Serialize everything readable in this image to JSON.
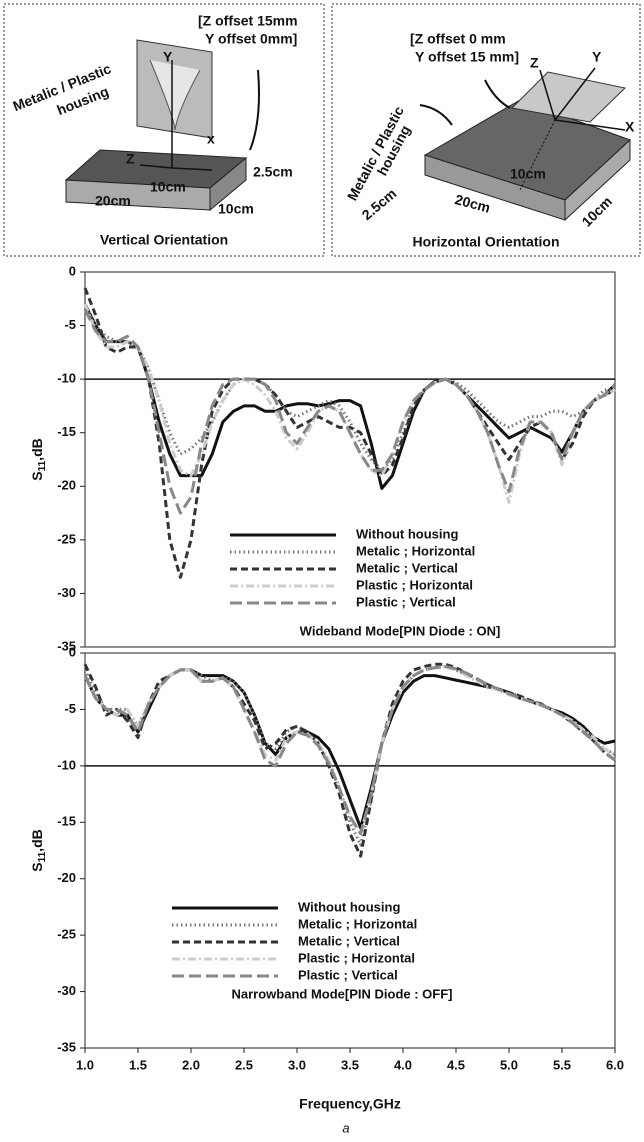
{
  "diagrams": [
    {
      "title": "Vertical Orientation",
      "offset_1": "[Z offset  15mm",
      "offset_2": "Y offset     0mm]",
      "housing_1": "Metalic / Plastic",
      "housing_2": "housing",
      "axis_y": "Y",
      "axis_x": "x",
      "axis_z": "Z",
      "height": "2.5cm",
      "width": "10cm",
      "length": "20cm",
      "depth": "10cm"
    },
    {
      "title": "Horizontal Orientation",
      "offset_1": "[Z offset  0 mm",
      "offset_2": "Y offset      15 mm]",
      "housing_1": "Metalic / Plastic",
      "housing_2": "housing",
      "axis_y": "Y",
      "axis_x": "X",
      "axis_z": "Z",
      "height": "2.5cm",
      "width": "10cm",
      "length": "20cm",
      "depth": "10cm"
    }
  ],
  "chart_data": [
    {
      "type": "line",
      "ylabel": {
        "main": "S",
        "sub": "11",
        "rest": ",dB"
      },
      "annotation": "Wideband Mode[PIN Diode : ON]",
      "hline": -10,
      "xlim": [
        1.0,
        6.0
      ],
      "ylim": [
        -35,
        0
      ],
      "yticks": [
        0,
        -5,
        -10,
        -15,
        -20,
        -25,
        -30,
        -35
      ],
      "x": [
        1.0,
        1.1,
        1.2,
        1.3,
        1.4,
        1.5,
        1.6,
        1.7,
        1.8,
        1.9,
        2.0,
        2.1,
        2.2,
        2.3,
        2.4,
        2.5,
        2.6,
        2.7,
        2.8,
        2.9,
        3.0,
        3.1,
        3.2,
        3.3,
        3.4,
        3.5,
        3.6,
        3.7,
        3.8,
        3.9,
        4.0,
        4.1,
        4.2,
        4.3,
        4.4,
        4.5,
        4.6,
        4.7,
        4.8,
        4.9,
        5.0,
        5.1,
        5.2,
        5.3,
        5.4,
        5.5,
        5.6,
        5.7,
        5.8,
        5.9,
        6.0
      ],
      "series": [
        {
          "name": "Without housing",
          "color": "#111111",
          "dash": "solid",
          "values": [
            -3,
            -5,
            -6.5,
            -6.5,
            -6.5,
            -7,
            -10,
            -14,
            -17,
            -19,
            -19,
            -19,
            -17,
            -14,
            -13,
            -12.5,
            -12.5,
            -13,
            -13,
            -12.5,
            -12.3,
            -12.3,
            -12.5,
            -12.3,
            -12,
            -12,
            -12.5,
            -16,
            -20.2,
            -19,
            -16,
            -13,
            -11,
            -10.2,
            -10,
            -10.5,
            -11.5,
            -12.5,
            -13.5,
            -14.5,
            -15.5,
            -15,
            -14.5,
            -15,
            -15.5,
            -16.8,
            -15,
            -13,
            -12,
            -11.5,
            -10.5
          ]
        },
        {
          "name": "Metalic ; Horizontal",
          "color": "#777777",
          "dash": "dotted",
          "values": [
            -3,
            -5,
            -6,
            -6.5,
            -6.5,
            -7,
            -9,
            -12,
            -15,
            -17,
            -16.5,
            -15.5,
            -14,
            -12,
            -10.5,
            -10,
            -10,
            -10.5,
            -11.5,
            -13,
            -13.5,
            -13,
            -12.5,
            -12,
            -12.5,
            -14,
            -16,
            -17.5,
            -18.5,
            -17.5,
            -15,
            -12.5,
            -11,
            -10.3,
            -10,
            -10.3,
            -11,
            -12,
            -13,
            -14,
            -14.5,
            -14,
            -13.5,
            -13.5,
            -13,
            -13,
            -13.5,
            -13,
            -12,
            -11,
            -11
          ]
        },
        {
          "name": "Metalic ; Vertical",
          "color": "#333333",
          "dash": "dashed",
          "values": [
            -1.5,
            -4,
            -7,
            -7.5,
            -7,
            -7,
            -10,
            -16,
            -25,
            -28.5,
            -25,
            -18,
            -13,
            -11,
            -10,
            -10,
            -10,
            -10.5,
            -11.5,
            -13,
            -14.5,
            -14,
            -13.5,
            -14,
            -14.5,
            -14.5,
            -15,
            -17,
            -19,
            -18,
            -15.5,
            -12.5,
            -11,
            -10.3,
            -10,
            -10.5,
            -11.5,
            -13,
            -14.5,
            -16,
            -17.5,
            -16,
            -14.5,
            -14,
            -15,
            -17.5,
            -16,
            -13.5,
            -12,
            -11.5,
            -11
          ]
        },
        {
          "name": "Plastic ; Horizontal",
          "color": "#cccccc",
          "dash": "dashdot",
          "values": [
            -3,
            -5.5,
            -7,
            -7,
            -6.5,
            -7,
            -9,
            -12,
            -16,
            -18.5,
            -19,
            -17,
            -14,
            -12,
            -10.5,
            -10,
            -10.5,
            -11.5,
            -13,
            -15.5,
            -16.5,
            -15,
            -13,
            -12.5,
            -13,
            -15,
            -17,
            -18.5,
            -19,
            -17,
            -14,
            -12,
            -11,
            -10.3,
            -10,
            -10.5,
            -11.5,
            -13,
            -15,
            -18,
            -21.5,
            -17,
            -14,
            -14,
            -15,
            -18,
            -15,
            -13,
            -12,
            -11.5,
            -11
          ]
        },
        {
          "name": "Plastic ; Vertical",
          "color": "#888888",
          "dash": "long",
          "values": [
            -3.5,
            -5.5,
            -6.5,
            -6.5,
            -6,
            -7,
            -10,
            -15,
            -20,
            -22.5,
            -21,
            -16,
            -12.5,
            -10.5,
            -10,
            -10,
            -10,
            -10.5,
            -12,
            -15,
            -16,
            -14.5,
            -13,
            -12.5,
            -13,
            -15,
            -17,
            -18.5,
            -18.5,
            -17,
            -14,
            -12,
            -11,
            -10.3,
            -10,
            -10.5,
            -11.5,
            -13,
            -15,
            -18,
            -20.5,
            -16.5,
            -14,
            -14,
            -15,
            -17.5,
            -15,
            -13,
            -12,
            -11.5,
            -10.5
          ]
        }
      ]
    },
    {
      "type": "line",
      "ylabel": {
        "main": "S",
        "sub": "11",
        "rest": ",dB"
      },
      "xlabel": "Frequency,GHz",
      "annotation": "Narrowband Mode[PIN Diode : OFF]",
      "hline": -10,
      "xlim": [
        1.0,
        6.0
      ],
      "ylim": [
        -35,
        0
      ],
      "yticks": [
        0,
        -5,
        -10,
        -15,
        -20,
        -25,
        -30,
        -35
      ],
      "xticks": [
        {
          "value": 1.0,
          "label": "1.0"
        },
        {
          "value": 1.5,
          "label": "1.5"
        },
        {
          "value": 2.0,
          "label": "2.0"
        },
        {
          "value": 2.5,
          "label": "2.5"
        },
        {
          "value": 3.0,
          "label": "3.0"
        },
        {
          "value": 3.5,
          "label": "3.5"
        },
        {
          "value": 4.0,
          "label": "4.0"
        },
        {
          "value": 4.5,
          "label": "4.5"
        },
        {
          "value": 5.0,
          "label": "5.0"
        },
        {
          "value": 5.5,
          "label": "5.5"
        },
        {
          "value": 6.0,
          "label": "6.0"
        }
      ],
      "x": [
        1.0,
        1.1,
        1.2,
        1.3,
        1.4,
        1.5,
        1.6,
        1.7,
        1.8,
        1.9,
        2.0,
        2.1,
        2.2,
        2.3,
        2.4,
        2.5,
        2.6,
        2.7,
        2.8,
        2.9,
        3.0,
        3.1,
        3.2,
        3.3,
        3.4,
        3.5,
        3.6,
        3.7,
        3.8,
        3.9,
        4.0,
        4.1,
        4.2,
        4.3,
        4.4,
        4.5,
        4.6,
        4.7,
        4.8,
        4.9,
        5.0,
        5.1,
        5.2,
        5.3,
        5.4,
        5.5,
        5.6,
        5.7,
        5.8,
        5.9,
        6.0
      ],
      "series": [
        {
          "name": "Without  housing",
          "color": "#111111",
          "dash": "solid",
          "values": [
            -2,
            -4,
            -5,
            -5.5,
            -5.5,
            -7,
            -5,
            -3,
            -2,
            -1.5,
            -1.5,
            -2,
            -2,
            -2,
            -2.5,
            -3.5,
            -5.5,
            -8,
            -9,
            -7.5,
            -7,
            -7,
            -7.5,
            -8.5,
            -10.5,
            -13,
            -15.5,
            -12,
            -8,
            -5.5,
            -3.5,
            -2.5,
            -2,
            -2,
            -2.2,
            -2.4,
            -2.6,
            -2.8,
            -3,
            -3.2,
            -3.5,
            -4,
            -4.3,
            -4.6,
            -5,
            -5.3,
            -5.8,
            -6.5,
            -7.5,
            -8,
            -7.8
          ]
        },
        {
          "name": "Metalic ; Horizontal",
          "color": "#777777",
          "dash": "dotted",
          "values": [
            -1.5,
            -3.5,
            -5,
            -5,
            -5,
            -6.5,
            -4.5,
            -3,
            -2,
            -1.5,
            -1.5,
            -2,
            -2.5,
            -2.2,
            -2.5,
            -3.5,
            -5.5,
            -8,
            -8.5,
            -7,
            -6.5,
            -7,
            -8,
            -9.5,
            -12,
            -15,
            -17,
            -13,
            -8,
            -5,
            -3,
            -2,
            -1.5,
            -1.3,
            -1.2,
            -1.5,
            -2,
            -2.5,
            -3,
            -3.2,
            -3.5,
            -3.8,
            -4.2,
            -4.5,
            -5,
            -5.5,
            -6,
            -6.8,
            -7.5,
            -8.5,
            -9
          ]
        },
        {
          "name": "Metalic ; Vertical",
          "color": "#333333",
          "dash": "dashed",
          "values": [
            -1,
            -3,
            -5.5,
            -5,
            -6,
            -7.5,
            -4.5,
            -2.5,
            -2,
            -1.5,
            -1.5,
            -2.5,
            -2.5,
            -2.2,
            -3,
            -4.5,
            -6,
            -8.5,
            -8,
            -6.8,
            -6.5,
            -7,
            -8,
            -10,
            -12.5,
            -16,
            -18,
            -13,
            -8,
            -4.5,
            -2.5,
            -1.5,
            -1.2,
            -1,
            -1,
            -1.3,
            -1.8,
            -2.3,
            -2.8,
            -3.2,
            -3.5,
            -3.8,
            -4.2,
            -4.5,
            -5,
            -5.5,
            -6.2,
            -7,
            -7.8,
            -8.8,
            -9.5
          ]
        },
        {
          "name": "Plastic ; Horizontal",
          "color": "#cccccc",
          "dash": "dashdot",
          "values": [
            -2,
            -4,
            -5,
            -5.5,
            -5,
            -6.5,
            -4.5,
            -3,
            -2,
            -1.5,
            -1.5,
            -2.5,
            -2.5,
            -2.2,
            -3,
            -5,
            -7,
            -9,
            -9.5,
            -7.5,
            -7,
            -7.2,
            -8,
            -9.5,
            -12,
            -14.5,
            -16,
            -12.5,
            -8,
            -5,
            -3,
            -2,
            -1.5,
            -1.3,
            -1.2,
            -1.5,
            -2,
            -2.5,
            -3,
            -3.3,
            -3.7,
            -4,
            -4.3,
            -4.6,
            -5,
            -5.5,
            -6,
            -6.8,
            -7.5,
            -8.5,
            -9
          ]
        },
        {
          "name": "Plastic ; Vertical",
          "color": "#888888",
          "dash": "long",
          "values": [
            -2,
            -4,
            -5,
            -5,
            -5.5,
            -7,
            -4.5,
            -3,
            -2,
            -1.5,
            -1.5,
            -2.5,
            -2.5,
            -2.2,
            -3,
            -5,
            -7,
            -9.5,
            -10,
            -8,
            -7,
            -7.3,
            -8.2,
            -9.8,
            -12,
            -14.5,
            -16,
            -12.5,
            -8,
            -5,
            -3,
            -2,
            -1.5,
            -1.3,
            -1.2,
            -1.4,
            -1.8,
            -2.3,
            -2.8,
            -3.2,
            -3.6,
            -4,
            -4.3,
            -4.6,
            -5,
            -5.5,
            -6.2,
            -7,
            -7.8,
            -8.8,
            -9.5
          ]
        }
      ]
    }
  ],
  "caption": "a"
}
